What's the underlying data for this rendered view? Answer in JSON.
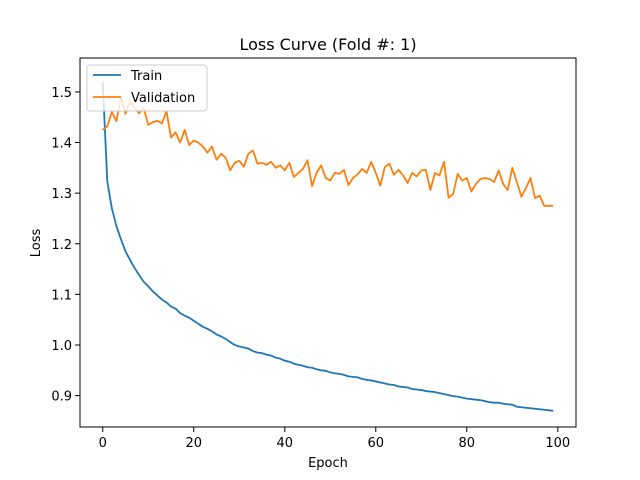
{
  "chart_data": {
    "type": "line",
    "title": "Loss Curve (Fold #: 1)",
    "xlabel": "Epoch",
    "ylabel": "Loss",
    "xlim": [
      -5,
      104
    ],
    "ylim": [
      0.838,
      1.567
    ],
    "xticks": [
      0,
      20,
      40,
      60,
      80,
      100
    ],
    "yticks": [
      0.9,
      1.0,
      1.1,
      1.2,
      1.3,
      1.4,
      1.5
    ],
    "ytick_labels": [
      "0.9",
      "1.0",
      "1.1",
      "1.2",
      "1.3",
      "1.4",
      "1.5"
    ],
    "grid": false,
    "legend_position": "top-left",
    "series": [
      {
        "name": "Train",
        "color": "#1f77b4",
        "x": [
          0,
          1,
          2,
          3,
          4,
          5,
          6,
          7,
          8,
          9,
          10,
          11,
          12,
          13,
          14,
          15,
          16,
          17,
          18,
          19,
          20,
          21,
          22,
          23,
          24,
          25,
          26,
          27,
          28,
          29,
          30,
          31,
          32,
          33,
          34,
          35,
          36,
          37,
          38,
          39,
          40,
          41,
          42,
          43,
          44,
          45,
          46,
          47,
          48,
          49,
          50,
          51,
          52,
          53,
          54,
          55,
          56,
          57,
          58,
          59,
          60,
          61,
          62,
          63,
          64,
          65,
          66,
          67,
          68,
          69,
          70,
          71,
          72,
          73,
          74,
          75,
          76,
          77,
          78,
          79,
          80,
          81,
          82,
          83,
          84,
          85,
          86,
          87,
          88,
          89,
          90,
          91,
          92,
          93,
          94,
          95,
          96,
          97,
          98,
          99
        ],
        "values": [
          1.52,
          1.323,
          1.27,
          1.235,
          1.209,
          1.185,
          1.168,
          1.152,
          1.138,
          1.125,
          1.116,
          1.106,
          1.098,
          1.09,
          1.084,
          1.076,
          1.072,
          1.063,
          1.058,
          1.054,
          1.048,
          1.042,
          1.036,
          1.032,
          1.027,
          1.021,
          1.017,
          1.012,
          1.006,
          1.0,
          0.997,
          0.995,
          0.993,
          0.988,
          0.985,
          0.984,
          0.981,
          0.979,
          0.975,
          0.973,
          0.969,
          0.967,
          0.963,
          0.961,
          0.959,
          0.956,
          0.955,
          0.952,
          0.95,
          0.949,
          0.946,
          0.944,
          0.943,
          0.941,
          0.938,
          0.937,
          0.936,
          0.933,
          0.931,
          0.93,
          0.928,
          0.926,
          0.924,
          0.922,
          0.921,
          0.918,
          0.917,
          0.916,
          0.913,
          0.912,
          0.911,
          0.909,
          0.908,
          0.907,
          0.905,
          0.903,
          0.901,
          0.899,
          0.898,
          0.896,
          0.894,
          0.893,
          0.892,
          0.891,
          0.889,
          0.887,
          0.886,
          0.886,
          0.884,
          0.883,
          0.882,
          0.878,
          0.877,
          0.876,
          0.875,
          0.874,
          0.873,
          0.872,
          0.871,
          0.87
        ]
      },
      {
        "name": "Validation",
        "color": "#ff7f0e",
        "x": [
          0,
          1,
          2,
          3,
          4,
          5,
          6,
          7,
          8,
          9,
          10,
          11,
          12,
          13,
          14,
          15,
          16,
          17,
          18,
          19,
          20,
          21,
          22,
          23,
          24,
          25,
          26,
          27,
          28,
          29,
          30,
          31,
          32,
          33,
          34,
          35,
          36,
          37,
          38,
          39,
          40,
          41,
          42,
          43,
          44,
          45,
          46,
          47,
          48,
          49,
          50,
          51,
          52,
          53,
          54,
          55,
          56,
          57,
          58,
          59,
          60,
          61,
          62,
          63,
          64,
          65,
          66,
          67,
          68,
          69,
          70,
          71,
          72,
          73,
          74,
          75,
          76,
          77,
          78,
          79,
          80,
          81,
          82,
          83,
          84,
          85,
          86,
          87,
          88,
          89,
          90,
          91,
          92,
          93,
          94,
          95,
          96,
          97,
          98,
          99
        ],
        "values": [
          1.425,
          1.432,
          1.46,
          1.442,
          1.49,
          1.457,
          1.48,
          1.468,
          1.458,
          1.468,
          1.435,
          1.44,
          1.443,
          1.438,
          1.462,
          1.41,
          1.42,
          1.4,
          1.425,
          1.395,
          1.404,
          1.4,
          1.392,
          1.38,
          1.392,
          1.366,
          1.378,
          1.37,
          1.345,
          1.36,
          1.364,
          1.352,
          1.378,
          1.384,
          1.358,
          1.36,
          1.356,
          1.362,
          1.35,
          1.355,
          1.345,
          1.36,
          1.332,
          1.34,
          1.348,
          1.365,
          1.314,
          1.34,
          1.355,
          1.33,
          1.325,
          1.34,
          1.338,
          1.346,
          1.316,
          1.33,
          1.337,
          1.348,
          1.34,
          1.362,
          1.34,
          1.315,
          1.352,
          1.358,
          1.336,
          1.346,
          1.335,
          1.32,
          1.34,
          1.333,
          1.345,
          1.346,
          1.306,
          1.34,
          1.335,
          1.362,
          1.291,
          1.298,
          1.338,
          1.325,
          1.33,
          1.303,
          1.318,
          1.328,
          1.33,
          1.328,
          1.322,
          1.345,
          1.318,
          1.306,
          1.35,
          1.322,
          1.293,
          1.31,
          1.33,
          1.29,
          1.295,
          1.275,
          1.275,
          1.275
        ]
      }
    ]
  }
}
